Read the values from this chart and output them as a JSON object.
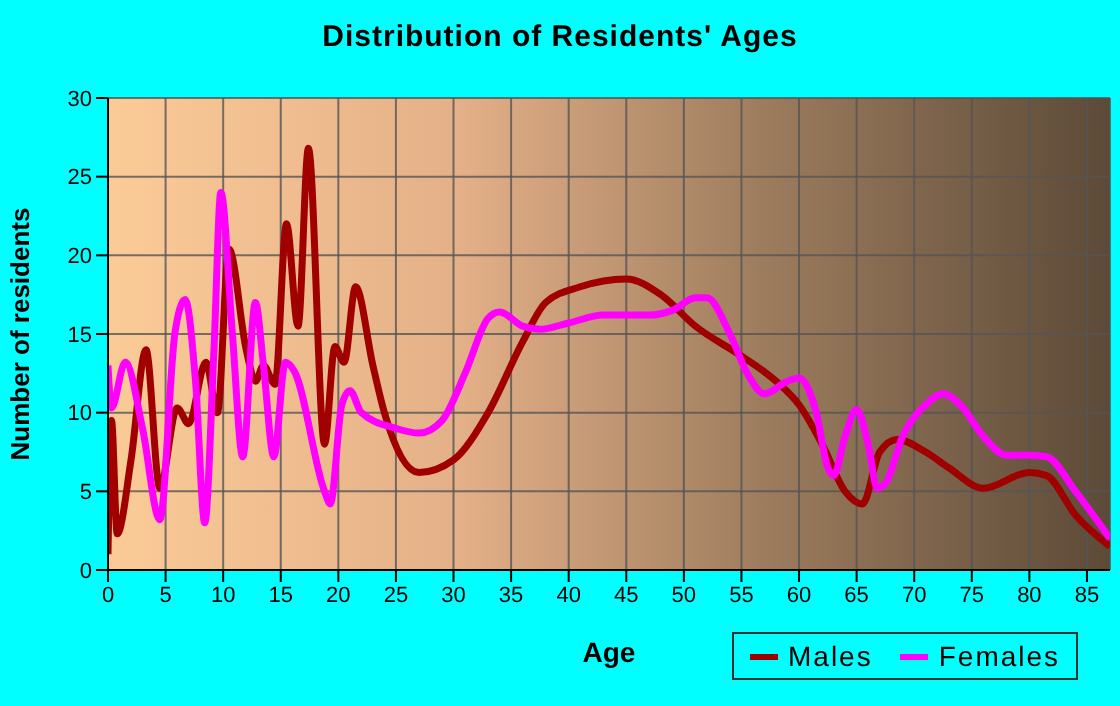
{
  "chart_data": {
    "type": "line",
    "title": "Distribution of Residents' Ages",
    "xlabel": "Age",
    "ylabel": "Number of residents",
    "xlim": [
      0,
      87
    ],
    "xticks": [
      0,
      5,
      10,
      15,
      20,
      25,
      30,
      35,
      40,
      45,
      50,
      55,
      60,
      65,
      70,
      75,
      80,
      85
    ],
    "ylim": [
      0,
      30
    ],
    "yticks": [
      0,
      5,
      10,
      15,
      20,
      25,
      30
    ],
    "grid": true,
    "legend": "bottom right",
    "marker": "none",
    "line_style": "solid",
    "series": [
      {
        "name": "Males",
        "color": "#a00000",
        "x": [
          0,
          0.3,
          0.8,
          2,
          3.3,
          4.5,
          6,
          7,
          8.5,
          9.5,
          10.5,
          12,
          12.8,
          13.5,
          14.5,
          15.5,
          16.5,
          17.4,
          18.8,
          19.7,
          20.5,
          21.5,
          23,
          24,
          27,
          30,
          33,
          36,
          38,
          41,
          45,
          48,
          51,
          55,
          58,
          60,
          62,
          64,
          65.5,
          67,
          68.5,
          71,
          73,
          76,
          80,
          81.5,
          84,
          87
        ],
        "values": [
          1,
          9.5,
          2.3,
          7,
          14,
          5.2,
          10.3,
          9.3,
          13.2,
          10,
          20.4,
          14,
          12,
          13,
          11.8,
          22,
          15.5,
          26.8,
          8,
          14.2,
          13.2,
          18,
          13,
          10,
          6.2,
          7,
          10,
          14.5,
          17,
          18,
          18.5,
          17.5,
          15.5,
          13.6,
          12,
          10.5,
          8,
          5,
          4.2,
          7.5,
          8.3,
          7.5,
          6.5,
          5.2,
          6.2,
          6,
          3.5,
          1.5
        ]
      },
      {
        "name": "Females",
        "color": "#ff00ff",
        "x": [
          0,
          0.3,
          1.5,
          3,
          4.5,
          5.8,
          6.7,
          7.6,
          8.4,
          9.2,
          9.8,
          10.8,
          11.7,
          12.8,
          13.5,
          14.4,
          15.4,
          16.2,
          18.8,
          19.3,
          20.3,
          21,
          22,
          25,
          27,
          29,
          31,
          33,
          34,
          36,
          37.5,
          40,
          43,
          47,
          49,
          51,
          52,
          54,
          55.5,
          57,
          59,
          60,
          61.5,
          62.5,
          63,
          64,
          65,
          66,
          66.8,
          67.5,
          69,
          71,
          72.5,
          74,
          76,
          78,
          80,
          81.5,
          84,
          87
        ],
        "values": [
          13,
          10.3,
          13.2,
          9,
          3.2,
          15,
          17.2,
          12,
          3,
          14,
          24,
          15,
          7.2,
          17,
          13,
          7.2,
          13.2,
          12.6,
          5,
          4.2,
          10.5,
          11.4,
          10,
          9,
          8.7,
          9.5,
          12.5,
          16,
          16.4,
          15.5,
          15.3,
          15.7,
          16.2,
          16.2,
          16.5,
          17.3,
          17.3,
          15,
          12.5,
          11.2,
          12,
          12.2,
          10,
          6.5,
          6,
          8.5,
          10.2,
          8,
          5.2,
          5.5,
          8.5,
          10.5,
          11.2,
          10.5,
          8.5,
          7.3,
          7.3,
          7.2,
          5,
          2
        ]
      }
    ]
  }
}
